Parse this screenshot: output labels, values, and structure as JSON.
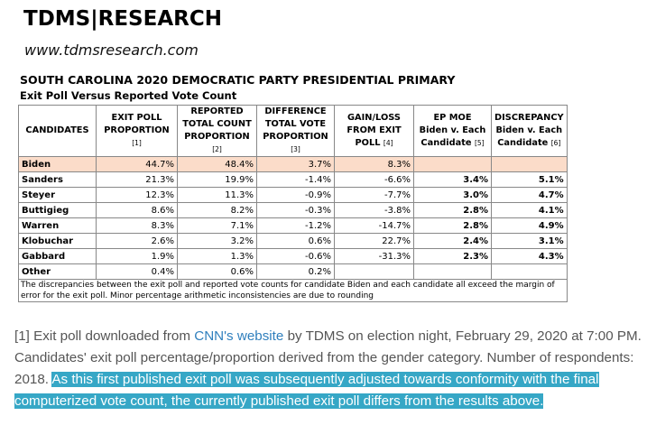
{
  "header": {
    "logo": "TDMS|RESEARCH",
    "site": "www.tdmsresearch.com"
  },
  "report": {
    "title": "SOUTH CAROLINA 2020 DEMOCRATIC PARTY PRESIDENTIAL PRIMARY",
    "subtitle": "Exit Poll Versus Reported Vote Count"
  },
  "table": {
    "headers": [
      {
        "line1": "CANDIDATES",
        "line2": "",
        "line3": "",
        "ref": ""
      },
      {
        "line1": "EXIT POLL",
        "line2": "PROPORTION",
        "line3": "",
        "ref": "[1]"
      },
      {
        "line1": "REPORTED",
        "line2": "TOTAL COUNT",
        "line3": "PROPORTION",
        "ref": "[2]"
      },
      {
        "line1": "DIFFERENCE",
        "line2": "TOTAL VOTE",
        "line3": "PROPORTION",
        "ref": "[3]"
      },
      {
        "line1": "GAIN/LOSS",
        "line2": "FROM EXIT POLL",
        "line3": "",
        "ref": "[4]"
      },
      {
        "line1": "EP MOE",
        "line2": "Biden v. Each",
        "line3": "Candidate",
        "ref": "[5]"
      },
      {
        "line1": "DISCREPANCY",
        "line2": "Biden v. Each",
        "line3": "Candidate",
        "ref": "[6]"
      }
    ],
    "rows": [
      {
        "candidate": "Biden",
        "exit": "44.7%",
        "reported": "48.4%",
        "diff": "3.7%",
        "gain": "8.3%",
        "moe": "",
        "disc": ""
      },
      {
        "candidate": "Sanders",
        "exit": "21.3%",
        "reported": "19.9%",
        "diff": "-1.4%",
        "gain": "-6.6%",
        "moe": "3.4%",
        "disc": "5.1%"
      },
      {
        "candidate": "Steyer",
        "exit": "12.3%",
        "reported": "11.3%",
        "diff": "-0.9%",
        "gain": "-7.7%",
        "moe": "3.0%",
        "disc": "4.7%"
      },
      {
        "candidate": "Buttigieg",
        "exit": "8.6%",
        "reported": "8.2%",
        "diff": "-0.3%",
        "gain": "-3.8%",
        "moe": "2.8%",
        "disc": "4.1%"
      },
      {
        "candidate": "Warren",
        "exit": "8.3%",
        "reported": "7.1%",
        "diff": "-1.2%",
        "gain": "-14.7%",
        "moe": "2.8%",
        "disc": "4.9%"
      },
      {
        "candidate": "Klobuchar",
        "exit": "2.6%",
        "reported": "3.2%",
        "diff": "0.6%",
        "gain": "22.7%",
        "moe": "2.4%",
        "disc": "3.1%"
      },
      {
        "candidate": "Gabbard",
        "exit": "1.9%",
        "reported": "1.3%",
        "diff": "-0.6%",
        "gain": "-31.3%",
        "moe": "2.3%",
        "disc": "4.3%"
      },
      {
        "candidate": "Other",
        "exit": "0.4%",
        "reported": "0.6%",
        "diff": "0.2%",
        "gain": "",
        "moe": "",
        "disc": ""
      }
    ],
    "note": "The discrepancies between the exit poll and reported vote counts for candidate Biden and each candidate all exceed the margin of error for the exit poll.  Minor percentage arithmetic inconsistencies are due to rounding"
  },
  "footnote": {
    "prefix": "[1] Exit poll downloaded from ",
    "link": "CNN's website",
    "middle": " by TDMS on election night, February 29, 2020 at 7:00 PM. Candidates' exit poll percentage/proportion derived from the gender category. Number of respondents: 2018. ",
    "highlighted": "As this first published exit poll was subsequently adjusted towards conformity with the final computerized vote count, the currently published exit poll differs from the results above."
  },
  "colors": {
    "biden_row": "#fbdcc9",
    "highlight": "#36a7c6",
    "link": "#2f7fbd"
  }
}
